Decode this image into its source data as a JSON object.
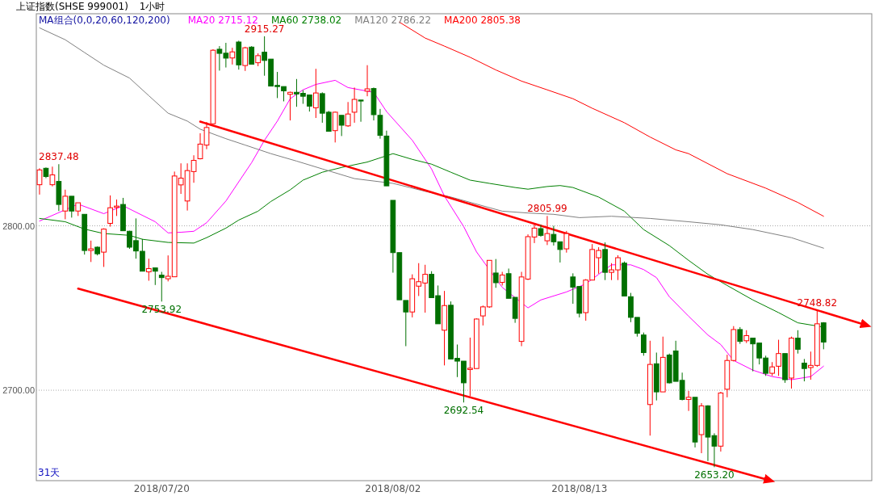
{
  "chart_data": {
    "type": "candlestick",
    "title": "上证指数(SHSE 999001)",
    "subtitle": "1小时",
    "legend_title": "MA组合(0,0,20,60,120,200)",
    "legend": "top left",
    "grid": "y",
    "ylim": [
      2645,
      2929
    ],
    "yticks": [
      {
        "value": 2700,
        "label": "2700.00"
      },
      {
        "value": 2800,
        "label": "2800.00"
      }
    ],
    "categories": [
      null,
      null,
      null,
      null,
      null,
      null,
      null,
      null,
      null,
      null,
      null,
      null,
      null,
      null,
      null,
      null,
      null,
      null,
      null,
      "2018/07/20",
      null,
      null,
      null,
      null,
      null,
      null,
      null,
      null,
      null,
      null,
      null,
      null,
      null,
      null,
      null,
      null,
      null,
      null,
      null,
      null,
      null,
      null,
      null,
      null,
      null,
      null,
      null,
      null,
      null,
      null,
      null,
      null,
      null,
      null,
      null,
      "2018/08/02",
      null,
      null,
      null,
      null,
      null,
      null,
      null,
      null,
      null,
      null,
      null,
      null,
      null,
      null,
      null,
      null,
      null,
      null,
      null,
      null,
      null,
      null,
      null,
      null,
      null,
      null,
      null,
      null,
      "2018/08/13",
      null,
      null,
      null,
      null,
      null,
      null,
      null,
      null,
      null,
      null,
      null,
      null,
      null,
      null,
      null,
      null,
      null,
      null,
      null,
      null,
      null,
      null,
      null,
      null,
      null,
      null,
      null,
      null,
      null,
      null,
      null,
      null,
      null,
      null,
      null,
      null,
      null,
      null,
      null,
      null,
      null,
      null,
      null,
      null,
      null
    ],
    "ohlc": [
      [
        2825,
        2835,
        2819,
        2834
      ],
      [
        2835,
        2835.5,
        2829,
        2830
      ],
      [
        2825,
        2836,
        2824,
        2831
      ],
      [
        2827,
        2837.48,
        2809,
        2813
      ],
      [
        2809,
        2822,
        2804,
        2818
      ],
      [
        2818,
        2818,
        2805,
        2809
      ],
      [
        2809,
        2814,
        2806,
        2814
      ],
      [
        2807,
        2807,
        2782.5,
        2785
      ],
      [
        2785,
        2791,
        2778,
        2786
      ],
      [
        2787,
        2787.5,
        2782,
        2783
      ],
      [
        2784,
        2798.5,
        2775,
        2798
      ],
      [
        2801.5,
        2818.5,
        2799.5,
        2811
      ],
      [
        2811.2,
        2816,
        2806,
        2812
      ],
      [
        2813,
        2817,
        2797,
        2797
      ],
      [
        2796.7,
        2797,
        2786,
        2787
      ],
      [
        2791,
        2804.5,
        2780,
        2784.7
      ],
      [
        2784.5,
        2792,
        2772.4,
        2772.4
      ],
      [
        2772,
        2780,
        2766.6,
        2774
      ],
      [
        2774.4,
        2774.4,
        2764,
        2772.4
      ],
      [
        2770,
        2772,
        2753.92,
        2768.5
      ],
      [
        2767.8,
        2782,
        2766.2,
        2769.3
      ],
      [
        2769,
        2833,
        2769,
        2830.3
      ],
      [
        2824.9,
        2838,
        2819.4,
        2829
      ],
      [
        2815.1,
        2838,
        2809.3,
        2833.6
      ],
      [
        2833,
        2842.9,
        2826.2,
        2839.8
      ],
      [
        2840.8,
        2856.3,
        2840.4,
        2849.7
      ],
      [
        2849.1,
        2863.1,
        2846.6,
        2859.8
      ],
      [
        2862.1,
        2907.4,
        2862.1,
        2906.8
      ],
      [
        2907.4,
        2909.3,
        2894.4,
        2904.9
      ],
      [
        2905,
        2911.3,
        2896.3,
        2902
      ],
      [
        2902.1,
        2908.3,
        2898.1,
        2905.8
      ],
      [
        2911.8,
        2912.6,
        2895,
        2897.9
      ],
      [
        2897.5,
        2908.9,
        2894.2,
        2908.3
      ],
      [
        2908.7,
        2909.3,
        2898.3,
        2898.3
      ],
      [
        2899.2,
        2904.9,
        2897.1,
        2903.5
      ],
      [
        2905.6,
        2915.27,
        2891.3,
        2900.6
      ],
      [
        2901.4,
        2901.4,
        2885,
        2885
      ],
      [
        2885.4,
        2893.6,
        2877.7,
        2884.7
      ],
      [
        2884.7,
        2884.7,
        2875.7,
        2882.1
      ],
      [
        2880,
        2881.6,
        2864.1,
        2881.2
      ],
      [
        2881.2,
        2889.3,
        2872.4,
        2880.2
      ],
      [
        2880.6,
        2882.5,
        2874.2,
        2878.8
      ],
      [
        2879.6,
        2879.6,
        2869.5,
        2872.8
      ],
      [
        2871.8,
        2895.5,
        2865.6,
        2880.8
      ],
      [
        2880.4,
        2881.2,
        2862.7,
        2868.5
      ],
      [
        2869.1,
        2869.9,
        2857.5,
        2857.5
      ],
      [
        2857.9,
        2869.5,
        2850.7,
        2869.1
      ],
      [
        2867.2,
        2867.2,
        2854.6,
        2861.2
      ],
      [
        2860.8,
        2875.3,
        2860.2,
        2868
      ],
      [
        2869.1,
        2884.1,
        2862.7,
        2876.9
      ],
      [
        2876.5,
        2876.5,
        2863.3,
        2875.9
      ],
      [
        2881.9,
        2897.7,
        2878.8,
        2883.3
      ],
      [
        2883.5,
        2884.1,
        2864.1,
        2867.6
      ],
      [
        2867.2,
        2871.1,
        2853,
        2855
      ],
      [
        2854.6,
        2857.9,
        2824.3,
        2824.3
      ],
      [
        2815.5,
        2815.5,
        2771.5,
        2783.7
      ],
      [
        2783.7,
        2783.7,
        2755,
        2755
      ],
      [
        2754.6,
        2754.6,
        2726.8,
        2747.6
      ],
      [
        2747.6,
        2770.5,
        2744.3,
        2767.8
      ],
      [
        2763.3,
        2777.3,
        2757.3,
        2766
      ],
      [
        2765.2,
        2776.3,
        2747.2,
        2770.5
      ],
      [
        2770.5,
        2772.4,
        2756.3,
        2756.3
      ],
      [
        2757.5,
        2763.7,
        2740.4,
        2740.4
      ],
      [
        2736.5,
        2760.4,
        2715.1,
        2751.5
      ],
      [
        2751.7,
        2754,
        2719,
        2719
      ],
      [
        2719.4,
        2727.8,
        2708,
        2717.7
      ],
      [
        2717.7,
        2717.7,
        2692.54,
        2704.5
      ],
      [
        2712.6,
        2732,
        2696.3,
        2713.4
      ],
      [
        2713.2,
        2743.7,
        2713.2,
        2743.3
      ],
      [
        2745.2,
        2751.5,
        2739.4,
        2750.7
      ],
      [
        2750.7,
        2779,
        2750.1,
        2779
      ],
      [
        2771.3,
        2779.8,
        2762.3,
        2765.4
      ],
      [
        2765.6,
        2772,
        2763.7,
        2770.1
      ],
      [
        2770.9,
        2774,
        2755.9,
        2755.9
      ],
      [
        2756.5,
        2756.5,
        2741,
        2743.7
      ],
      [
        2729.7,
        2772,
        2726.8,
        2768.9
      ],
      [
        2767.6,
        2794.8,
        2767,
        2793.4
      ],
      [
        2793.2,
        2801.6,
        2789.5,
        2798.6
      ],
      [
        2798.3,
        2800.6,
        2793.4,
        2794.2
      ],
      [
        2790.9,
        2805.99,
        2788.3,
        2795.3
      ],
      [
        2794.8,
        2800,
        2788,
        2790.3
      ],
      [
        2790.3,
        2790.3,
        2777.7,
        2785.6
      ],
      [
        2786,
        2796.9,
        2783.7,
        2795.3
      ],
      [
        2768.9,
        2771.1,
        2752.6,
        2762.7
      ],
      [
        2763.1,
        2763.1,
        2744.3,
        2746.8
      ],
      [
        2747.2,
        2767.6,
        2742.3,
        2767
      ],
      [
        2767,
        2788.9,
        2767,
        2785.6
      ],
      [
        2780.6,
        2787,
        2770.9,
        2785
      ],
      [
        2785.6,
        2789.9,
        2767,
        2771.7
      ],
      [
        2771.7,
        2777.3,
        2767,
        2773.2
      ],
      [
        2773.2,
        2782.1,
        2767,
        2780.6
      ],
      [
        2777.3,
        2778.3,
        2757.3,
        2757.3
      ],
      [
        2756.9,
        2759.2,
        2741.4,
        2744.3
      ],
      [
        2744.3,
        2744.3,
        2732.6,
        2734.6
      ],
      [
        2733.6,
        2735.1,
        2721,
        2722.9
      ],
      [
        2691.3,
        2730.1,
        2672.4,
        2715.7
      ],
      [
        2716.1,
        2722.9,
        2693.8,
        2699
      ],
      [
        2699,
        2732.6,
        2699,
        2720
      ],
      [
        2721.4,
        2722.3,
        2704.1,
        2704.5
      ],
      [
        2723.9,
        2730.1,
        2705.4,
        2705.4
      ],
      [
        2706,
        2710.7,
        2693.8,
        2694.4
      ],
      [
        2694.4,
        2699.6,
        2687.4,
        2695.7
      ],
      [
        2695.7,
        2695.7,
        2665.2,
        2668.5
      ],
      [
        2673,
        2692.2,
        2661.7,
        2690.5
      ],
      [
        2690.5,
        2690.9,
        2656.9,
        2671.5
      ],
      [
        2672.4,
        2673.8,
        2653.2,
        2666
      ],
      [
        2666,
        2699,
        2662.7,
        2698.3
      ],
      [
        2700.6,
        2721.6,
        2695.7,
        2718.1
      ],
      [
        2718.1,
        2739,
        2717.5,
        2736.9
      ],
      [
        2736.9,
        2738.4,
        2728.2,
        2729.7
      ],
      [
        2730.1,
        2736.5,
        2728.7,
        2733.2
      ],
      [
        2731.7,
        2731.7,
        2711.5,
        2728.2
      ],
      [
        2728.7,
        2728.7,
        2715.7,
        2719.6
      ],
      [
        2719.6,
        2721,
        2708.7,
        2710.3
      ],
      [
        2710.3,
        2717.1,
        2708.7,
        2714.2
      ],
      [
        2714.6,
        2730.7,
        2708.7,
        2722.3
      ],
      [
        2722.3,
        2722.3,
        2704.5,
        2706.4
      ],
      [
        2707.4,
        2732.6,
        2701,
        2731.7
      ],
      [
        2731.7,
        2736.5,
        2722.3,
        2724.9
      ],
      [
        2716.5,
        2719,
        2705.4,
        2713.2
      ],
      [
        2713.8,
        2723.5,
        2706.4,
        2715.1
      ],
      [
        2715.1,
        2748.82,
        2714.2,
        2740.4
      ],
      [
        2741,
        2741.4,
        2724.9,
        2729.3
      ],
      null,
      null,
      null,
      null,
      null,
      null,
      null
    ],
    "colors": [
      "#ff0000",
      "#007000",
      "#ff0000",
      "#007000",
      "#ff0000",
      "#007000",
      "#ff0000",
      "#007000",
      "#ff0000",
      "#007000",
      "#ff0000",
      "#ff0000",
      "#ff0000",
      "#007000",
      "#007000",
      "#007000",
      "#007000",
      "#ff0000",
      "#007000",
      "#007000",
      "#ff0000",
      "#ff0000",
      "#ff0000",
      "#ff0000",
      "#ff0000",
      "#ff0000",
      "#ff0000",
      "#ff0000",
      "#007000",
      "#007000",
      "#ff0000",
      "#007000",
      "#ff0000",
      "#007000",
      "#ff0000",
      "#007000",
      "#007000",
      "#007000",
      "#007000",
      "#ff0000",
      "#007000",
      "#007000",
      "#007000",
      "#ff0000",
      "#007000",
      "#007000",
      "#ff0000",
      "#007000",
      "#ff0000",
      "#ff0000",
      "#007000",
      "#ff0000",
      "#007000",
      "#007000",
      "#007000",
      "#007000",
      "#007000",
      "#007000",
      "#ff0000",
      "#ff0000",
      "#ff0000",
      "#007000",
      "#007000",
      "#ff0000",
      "#007000",
      "#007000",
      "#007000",
      "#ff0000",
      "#ff0000",
      "#ff0000",
      "#ff0000",
      "#007000",
      "#ff0000",
      "#007000",
      "#007000",
      "#ff0000",
      "#ff0000",
      "#ff0000",
      "#007000",
      "#ff0000",
      "#007000",
      "#007000",
      "#ff0000",
      "#007000",
      "#007000",
      "#ff0000",
      "#ff0000",
      "#ff0000",
      "#007000",
      "#ff0000",
      "#ff0000",
      "#007000",
      "#007000",
      "#007000",
      "#007000",
      "#ff0000",
      "#007000",
      "#ff0000",
      "#007000",
      "#007000",
      "#007000",
      "#ff0000",
      "#007000",
      "#ff0000",
      "#007000",
      "#007000",
      "#ff0000",
      "#ff0000",
      "#ff0000",
      "#007000",
      "#ff0000",
      "#007000",
      "#007000",
      "#007000",
      "#ff0000",
      "#ff0000",
      "#007000",
      "#ff0000",
      "#007000",
      "#007000",
      "#ff0000",
      "#ff0000",
      "#007000",
      null,
      null,
      null,
      null,
      null,
      null,
      null
    ],
    "series": [
      {
        "type": "line",
        "name": "MA20 2715.12",
        "color": "#ff00ff",
        "values": [
          2802.9,
          null,
          null,
          null,
          null,
          null,
          2813.2,
          null,
          null,
          null,
          2807.4,
          null,
          null,
          2812.2,
          null,
          null,
          null,
          null,
          2802.5,
          null,
          2795.7,
          null,
          2796.1,
          null,
          2796.7,
          null,
          2801.9,
          null,
          null,
          2815.1,
          null,
          2826.8,
          null,
          2838.4,
          null,
          2852,
          null,
          2863.7,
          null,
          2877.3,
          null,
          2882.7,
          null,
          2886,
          null,
          null,
          2888.5,
          null,
          2884.1,
          null,
          null,
          null,
          2881.2,
          null,
          2869.5,
          null,
          null,
          null,
          2852,
          null,
          null,
          2834.6,
          null,
          2818.1,
          null,
          null,
          2799.6,
          null,
          2784.1,
          null,
          null,
          null,
          2762.6,
          null,
          null,
          null,
          2750.1,
          null,
          2754.9,
          null,
          null,
          null,
          2759.8,
          null,
          null,
          2764.7,
          null,
          2770.5,
          null,
          2776.3,
          null,
          null,
          2776.3,
          null,
          2773.4,
          null,
          2768.5,
          null,
          2756.9,
          null,
          null,
          2745,
          null,
          null,
          2733.6,
          null,
          2727.8,
          null,
          2718.1,
          null,
          null,
          2712.2,
          null,
          null,
          2708.3,
          null,
          null,
          2706.4,
          null,
          null,
          2708.3,
          null,
          2714.6,
          null,
          null,
          null,
          null,
          null,
          null,
          null
        ]
      },
      {
        "type": "line",
        "name": "MA60 2738.02",
        "color": "#008000",
        "values": [
          2804.5,
          null,
          null,
          null,
          2802.5,
          null,
          null,
          2798,
          null,
          null,
          2795.3,
          null,
          null,
          null,
          2794.2,
          null,
          2791.8,
          null,
          null,
          null,
          2789.9,
          null,
          null,
          null,
          2789.5,
          null,
          2792.8,
          null,
          null,
          2798.6,
          null,
          2803.5,
          null,
          null,
          2808.9,
          null,
          2814.8,
          null,
          null,
          2821.9,
          null,
          2827.8,
          null,
          null,
          2832.6,
          null,
          null,
          2835.5,
          null,
          null,
          null,
          2838.8,
          null,
          null,
          null,
          2843.9,
          null,
          null,
          2840.4,
          null,
          null,
          2837.5,
          null,
          null,
          2832.6,
          null,
          null,
          2827.8,
          null,
          null,
          2825.8,
          null,
          null,
          null,
          2823.3,
          null,
          2822.3,
          null,
          null,
          2823.9,
          null,
          2824.5,
          null,
          2823.3,
          null,
          null,
          null,
          2817.5,
          null,
          null,
          null,
          2808.9,
          null,
          null,
          2797.7,
          null,
          null,
          null,
          2788,
          null,
          null,
          2779,
          null,
          null,
          2770.5,
          null,
          null,
          2763.7,
          null,
          null,
          null,
          2754.9,
          null,
          null,
          null,
          2747.2,
          null,
          null,
          2741,
          null,
          null,
          null,
          2738.4,
          null,
          null,
          null,
          null,
          null,
          null,
          null
        ]
      },
      {
        "type": "line",
        "name": "MA120 2786.22",
        "color": "#808080",
        "values": [
          2920.4,
          null,
          null,
          null,
          2913.2,
          null,
          null,
          2905.4,
          null,
          null,
          2897.7,
          null,
          null,
          null,
          2889.9,
          null,
          null,
          2879.2,
          null,
          null,
          2868.5,
          null,
          null,
          2863.7,
          null,
          2858.8,
          null,
          null,
          null,
          2853,
          null,
          null,
          2849.1,
          null,
          null,
          null,
          2843.9,
          null,
          null,
          null,
          2839.4,
          null,
          null,
          null,
          2834.6,
          null,
          null,
          null,
          null,
          2828.7,
          null,
          null,
          null,
          null,
          null,
          2825.8,
          null,
          null,
          null,
          null,
          2821,
          null,
          null,
          null,
          2817.5,
          null,
          null,
          null,
          null,
          null,
          null,
          null,
          2808.9,
          null,
          null,
          null,
          2807.8,
          null,
          null,
          null,
          2807,
          null,
          null,
          null,
          2805,
          null,
          null,
          null,
          null,
          2805.8,
          null,
          null,
          null,
          null,
          null,
          2804.5,
          null,
          null,
          null,
          null,
          null,
          2802.5,
          null,
          null,
          null,
          null,
          2800.6,
          null,
          null,
          null,
          null,
          2797.7,
          null,
          null,
          null,
          null,
          null,
          2792.8,
          null,
          null,
          null,
          null,
          2786.4,
          null,
          null,
          null,
          null,
          null,
          null,
          null
        ]
      },
      {
        "type": "line",
        "name": "MA200 2805.38",
        "color": "#ff0000",
        "values": [
          null,
          null,
          null,
          null,
          null,
          null,
          null,
          null,
          null,
          null,
          null,
          null,
          null,
          null,
          null,
          null,
          null,
          null,
          null,
          null,
          null,
          null,
          null,
          null,
          null,
          null,
          null,
          null,
          null,
          null,
          null,
          null,
          null,
          null,
          null,
          null,
          null,
          null,
          null,
          null,
          null,
          null,
          null,
          null,
          null,
          null,
          null,
          null,
          null,
          null,
          null,
          null,
          null,
          null,
          null,
          null,
          2923.9,
          null,
          null,
          null,
          2914.2,
          null,
          null,
          2909.3,
          null,
          null,
          null,
          2902.5,
          null,
          null,
          null,
          2894.8,
          null,
          null,
          null,
          2888,
          null,
          null,
          null,
          2882.7,
          null,
          null,
          null,
          2877.3,
          null,
          null,
          2871.5,
          null,
          null,
          null,
          null,
          2862.7,
          null,
          null,
          null,
          2854,
          null,
          null,
          null,
          2846.2,
          null,
          2843.9,
          null,
          null,
          null,
          null,
          null,
          2831.7,
          null,
          null,
          null,
          null,
          null,
          2822.9,
          null,
          null,
          null,
          null,
          2814.2,
          null,
          null,
          null,
          2805.8,
          null,
          null,
          null,
          null,
          null,
          null,
          null
        ]
      },
      {
        "type": "line",
        "color": "#ff0000",
        "values": [
          null,
          null,
          null,
          null,
          null,
          null,
          null,
          null,
          null,
          null,
          null,
          null,
          null,
          null,
          null,
          null,
          null,
          null,
          null,
          null,
          null,
          null,
          null,
          null,
          null,
          2863.4,
          null,
          null,
          null,
          null,
          null,
          null,
          null,
          null,
          null,
          null,
          null,
          null,
          null,
          null,
          null,
          null,
          null,
          null,
          null,
          null,
          null,
          null,
          null,
          null,
          null,
          null,
          null,
          null,
          null,
          null,
          null,
          null,
          null,
          null,
          null,
          null,
          null,
          null,
          null,
          null,
          null,
          null,
          null,
          null,
          null,
          null,
          null,
          null,
          null,
          null,
          null,
          null,
          null,
          null,
          null,
          null,
          null,
          null,
          null,
          null,
          null,
          null,
          null,
          null,
          null,
          null,
          null,
          null,
          null,
          null,
          null,
          null,
          null,
          null,
          null,
          null,
          null,
          null,
          null,
          null,
          null,
          null,
          null,
          null,
          null,
          null,
          null,
          null,
          null,
          null,
          null,
          null,
          null,
          null,
          null,
          null,
          null,
          null,
          null,
          null,
          null,
          null,
          2740.3,
          null
        ]
      },
      {
        "type": "line",
        "color": "#ff0000",
        "values": [
          null,
          null,
          null,
          null,
          null,
          null,
          2761.8,
          null,
          null,
          null,
          null,
          null,
          null,
          null,
          null,
          null,
          null,
          null,
          null,
          null,
          null,
          null,
          null,
          null,
          null,
          null,
          null,
          null,
          null,
          null,
          null,
          null,
          null,
          null,
          null,
          null,
          null,
          null,
          null,
          null,
          null,
          null,
          null,
          null,
          null,
          null,
          null,
          null,
          null,
          null,
          null,
          null,
          null,
          null,
          null,
          null,
          null,
          null,
          null,
          null,
          null,
          null,
          null,
          null,
          null,
          null,
          null,
          null,
          null,
          null,
          null,
          null,
          null,
          null,
          null,
          null,
          null,
          null,
          null,
          null,
          null,
          null,
          null,
          null,
          null,
          null,
          null,
          null,
          null,
          null,
          null,
          null,
          null,
          null,
          null,
          null,
          null,
          null,
          null,
          null,
          null,
          null,
          null,
          null,
          null,
          null,
          null,
          null,
          null,
          null,
          null,
          null,
          null,
          2645.9,
          null,
          null,
          null,
          null,
          null,
          null,
          null,
          null,
          null,
          null,
          null,
          null,
          null,
          null,
          null,
          null
        ]
      }
    ],
    "annotations": [
      "31天",
      {
        "text": "2837.48",
        "y": 2837.48
      },
      {
        "text": "2915.27",
        "y": 2915.27
      },
      {
        "text": "2753.92",
        "y": 2753.92
      },
      {
        "text": "2692.54",
        "y": 2692.54
      },
      {
        "text": "2805.99",
        "y": 2805.99
      },
      {
        "text": "2748.82",
        "y": 2748.82
      },
      {
        "text": "2653.20",
        "y": 2653.2
      }
    ]
  }
}
